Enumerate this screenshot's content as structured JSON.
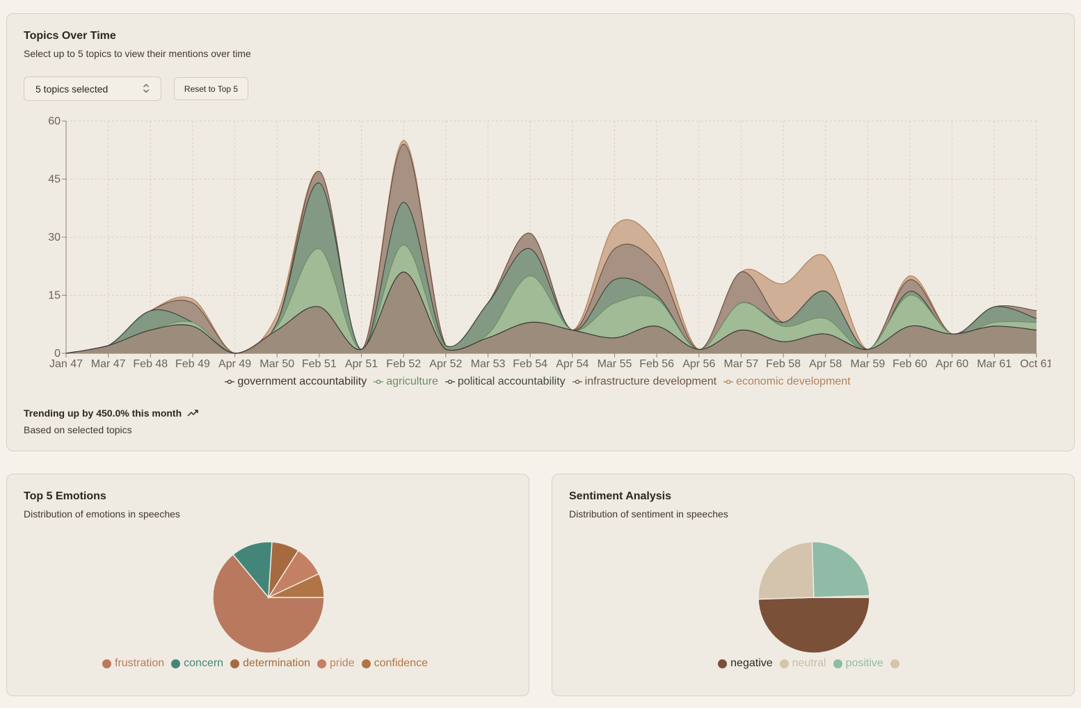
{
  "topics_card": {
    "title": "Topics Over Time",
    "subtitle": "Select up to 5 topics to view their mentions over time",
    "select_label": "5 topics selected",
    "reset_label": "Reset to Top 5",
    "trend_text": "Trending up by 450.0% this month",
    "trend_sub": "Based on selected topics"
  },
  "emotions_card": {
    "title": "Top 5 Emotions",
    "subtitle": "Distribution of emotions in speeches"
  },
  "sentiment_card": {
    "title": "Sentiment Analysis",
    "subtitle": "Distribution of sentiment in speeches"
  },
  "icons": {
    "select": "chevron-up-down-icon",
    "trend": "trending-up-icon"
  },
  "chart_data": [
    {
      "type": "area",
      "title": "",
      "ylim": [
        0,
        60
      ],
      "yticks": [
        0,
        15,
        30,
        45,
        60
      ],
      "grid": true,
      "legend_position": "bottom",
      "x": [
        "Jan 47",
        "Mar 47",
        "Feb 48",
        "Feb 49",
        "Apr 49",
        "Mar 50",
        "Feb 51",
        "Apr 51",
        "Feb 52",
        "Apr 52",
        "Mar 53",
        "Feb 54",
        "Apr 54",
        "Mar 55",
        "Feb 56",
        "Apr 56",
        "Mar 57",
        "Feb 58",
        "Apr 58",
        "Mar 59",
        "Feb 60",
        "Apr 60",
        "Mar 61",
        "Oct 61"
      ],
      "series": [
        {
          "name": "government accountability",
          "color": "#9a8478",
          "values": [
            0,
            2,
            6,
            7,
            0,
            6,
            12,
            1,
            21,
            1,
            4,
            8,
            6,
            4,
            7,
            1,
            6,
            3,
            5,
            1,
            7,
            5,
            7,
            6
          ]
        },
        {
          "name": "agriculture",
          "color": "#a4c19a",
          "values": [
            0,
            2,
            6,
            8,
            0,
            7,
            27,
            1,
            28,
            1,
            5,
            20,
            6,
            13,
            14,
            1,
            13,
            7,
            9,
            1,
            15,
            5,
            8,
            8
          ]
        },
        {
          "name": "political accountability",
          "color": "#7e9a84",
          "values": [
            0,
            2,
            11,
            8,
            0,
            8,
            44,
            1,
            39,
            2,
            13,
            27,
            6,
            19,
            15,
            1,
            13,
            8,
            16,
            1,
            16,
            5,
            12,
            9
          ]
        },
        {
          "name": "infrastructure development",
          "color": "#a08c80",
          "values": [
            0,
            2,
            11,
            13,
            0,
            8,
            47,
            1,
            54,
            2,
            13,
            31,
            6,
            27,
            23,
            1,
            21,
            8,
            16,
            1,
            19,
            5,
            12,
            11
          ]
        },
        {
          "name": "economic development",
          "color": "#c9a488",
          "values": [
            0,
            2,
            11,
            14,
            0,
            10,
            47,
            1,
            55,
            2,
            13,
            31,
            6,
            33,
            28,
            1,
            21,
            18,
            25,
            1,
            20,
            5,
            12,
            11
          ]
        }
      ],
      "colors": {
        "government accountability": "#3d3530",
        "agriculture": "#6b8f64",
        "political accountability": "#3a4a3f",
        "infrastructure development": "#6e5446",
        "economic development": "#b0825f"
      }
    },
    {
      "type": "pie",
      "categories": [
        "frustration",
        "concern",
        "determination",
        "pride",
        "confidence"
      ],
      "values": [
        64,
        12,
        8,
        9,
        7
      ],
      "colors": [
        "#b8795e",
        "#44857a",
        "#a56a3f",
        "#c48063",
        "#b07447"
      ]
    },
    {
      "type": "pie",
      "categories": [
        "negative",
        "neutral",
        "positive",
        ""
      ],
      "values": [
        49.5,
        25,
        25,
        0.5
      ],
      "colors": [
        "#7a5039",
        "#d4c4ad",
        "#8fbba7",
        "#d4c4ad"
      ]
    }
  ]
}
